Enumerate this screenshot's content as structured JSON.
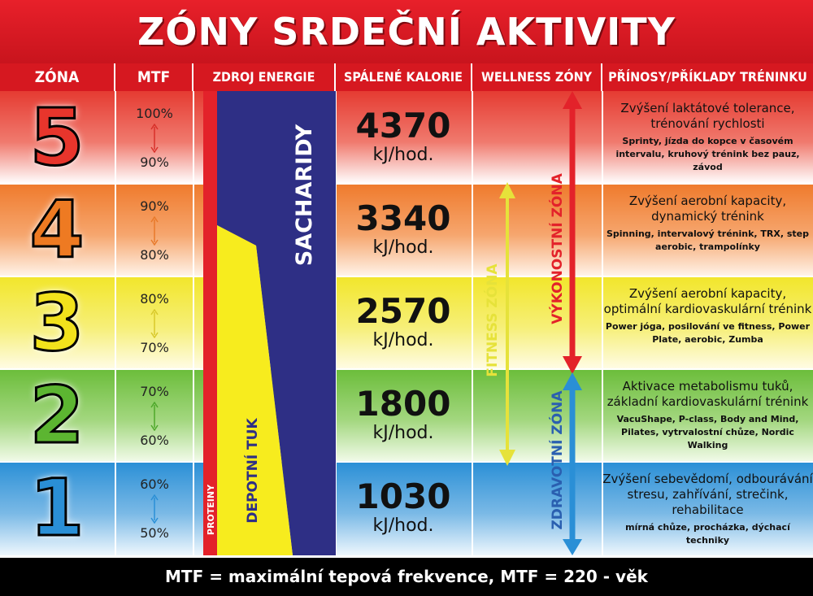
{
  "title": "ZÓNY SRDEČNÍ AKTIVITY",
  "headers": [
    "ZÓNA",
    "MTF",
    "ZDROJ ENERGIE",
    "SPÁLENÉ KALORIE",
    "WELLNESS ZÓNY",
    "PŘÍNOSY/PŘÍKLADY TRÉNINKU"
  ],
  "energy": {
    "protein": "PROTEINY",
    "fat": "DEPOTNÍ TUK",
    "carbs": "SACHARIDY",
    "colors": {
      "protein": "#e3222a",
      "fat": "#f7ec1e",
      "carbs": "#2e2f85"
    }
  },
  "wellness": {
    "fitness": "FITNESS ZÓNA",
    "performance": "VÝKONOSTNÍ ZÓNA",
    "health": "ZDRAVOTNÍ ZÓNA",
    "colors": {
      "fitness": "#e6e23a",
      "performance": "#e3222a",
      "health": "#2a8fd6"
    }
  },
  "zones": [
    {
      "zone": "5",
      "color": "#e8352c",
      "mtf_top": "100%",
      "mtf_bottom": "90%",
      "arrow_color": "#d8302a",
      "kcal": "4370",
      "unit": "kJ/hod.",
      "benefit": "Zvýšení laktátové tolerance, trénování rychlosti",
      "examples": "Sprinty, jízda do kopce v časovém intervalu, kruhový trénink bez pauz, závod"
    },
    {
      "zone": "4",
      "color": "#ee7a22",
      "mtf_top": "90%",
      "mtf_bottom": "80%",
      "arrow_color": "#e8792a",
      "kcal": "3340",
      "unit": "kJ/hod.",
      "benefit": "Zvýšení aerobní kapacity, dynamický trénink",
      "examples": "Spinning, intervalový trénink, TRX, step aerobic, trampolínky"
    },
    {
      "zone": "3",
      "color": "#f2e21c",
      "mtf_top": "80%",
      "mtf_bottom": "70%",
      "arrow_color": "#e6d62a",
      "kcal": "2570",
      "unit": "kJ/hod.",
      "benefit": "Zvýšení aerobní kapacity, optimální kardiovaskulární trénink",
      "examples": "Power jóga, posilování ve fitness, Power Plate, aerobic, Zumba"
    },
    {
      "zone": "2",
      "color": "#5cb531",
      "mtf_top": "70%",
      "mtf_bottom": "60%",
      "arrow_color": "#5cb531",
      "kcal": "1800",
      "unit": "kJ/hod.",
      "benefit": "Aktivace metabolismu tuků, základní kardiovaskulární trénink",
      "examples": "VacuShape, P-class, Body and Mind, Pilates, vytrvalostní chůze, Nordic Walking"
    },
    {
      "zone": "1",
      "color": "#2a8fd6",
      "mtf_top": "60%",
      "mtf_bottom": "50%",
      "arrow_color": "#2a8fd6",
      "kcal": "1030",
      "unit": "kJ/hod.",
      "benefit": "Zvýšení sebevědomí, odbourávání stresu, zahřívání, strečink, rehabilitace",
      "examples": "mírná chůze, procházka, dýchací techniky"
    }
  ],
  "footer": "MTF = maximální tepová frekvence, MTF = 220 - věk"
}
